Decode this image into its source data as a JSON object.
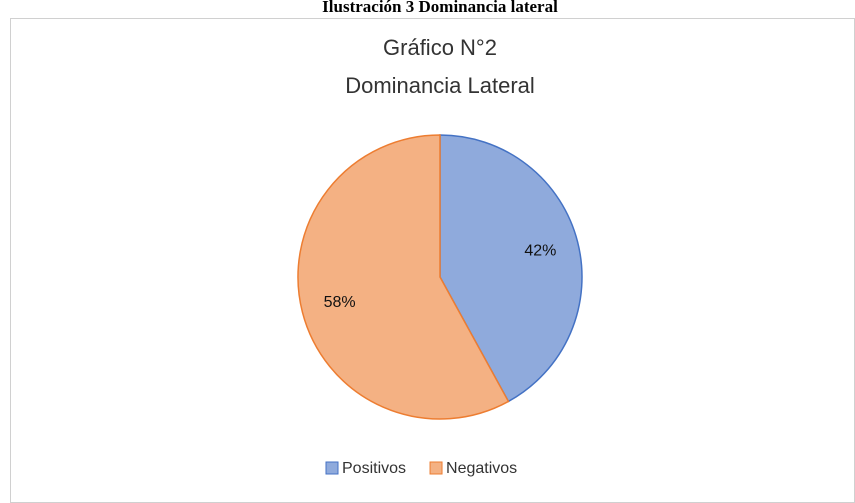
{
  "chart_data": {
    "type": "pie",
    "caption": "Ilustración 3 Dominancia lateral",
    "title": "Gráfico N°2",
    "subtitle": "Dominancia Lateral",
    "categories": [
      "Positivos",
      "Negativos"
    ],
    "values": [
      42,
      58
    ],
    "value_labels": [
      "42%",
      "58%"
    ],
    "colors": [
      "#8faadc",
      "#f4b183"
    ],
    "edge_colors": [
      "#4472c4",
      "#ed7d31"
    ],
    "legend": "bottom"
  }
}
